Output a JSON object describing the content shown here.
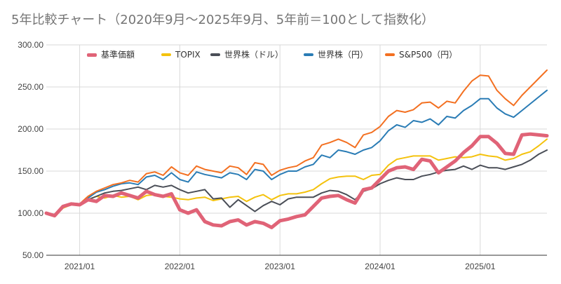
{
  "title": "5年比較チャート（2020年9月～2025年9月、5年前＝100として指数化）",
  "chart_data": {
    "type": "line",
    "title": "5年比較チャート（2020年9月～2025年9月、5年前＝100として指数化）",
    "xlabel": "",
    "ylabel": "",
    "ylim": [
      50,
      300
    ],
    "y_ticks": [
      "50.00",
      "100.00",
      "150.00",
      "200.00",
      "250.00",
      "300.00"
    ],
    "x_ticks": [
      "2021/01",
      "2022/01",
      "2023/01",
      "2024/01",
      "2025/01"
    ],
    "x": [
      "2020/09",
      "2020/10",
      "2020/11",
      "2020/12",
      "2021/01",
      "2021/02",
      "2021/03",
      "2021/04",
      "2021/05",
      "2021/06",
      "2021/07",
      "2021/08",
      "2021/09",
      "2021/10",
      "2021/11",
      "2021/12",
      "2022/01",
      "2022/02",
      "2022/03",
      "2022/04",
      "2022/05",
      "2022/06",
      "2022/07",
      "2022/08",
      "2022/09",
      "2022/10",
      "2022/11",
      "2022/12",
      "2023/01",
      "2023/02",
      "2023/03",
      "2023/04",
      "2023/05",
      "2023/06",
      "2023/07",
      "2023/08",
      "2023/09",
      "2023/10",
      "2023/11",
      "2023/12",
      "2024/01",
      "2024/02",
      "2024/03",
      "2024/04",
      "2024/05",
      "2024/06",
      "2024/07",
      "2024/08",
      "2024/09",
      "2024/10",
      "2024/11",
      "2024/12",
      "2025/01",
      "2025/02",
      "2025/03",
      "2025/04",
      "2025/05",
      "2025/06",
      "2025/07",
      "2025/08",
      "2025/09"
    ],
    "grid": true,
    "legend_position": "top",
    "series": [
      {
        "name": "基準価額",
        "color": "#e06377",
        "width": 5,
        "values": [
          100,
          97,
          108,
          111,
          110,
          116,
          114,
          121,
          120,
          124,
          121,
          118,
          126,
          122,
          120,
          123,
          104,
          100,
          104,
          90,
          86,
          85,
          90,
          92,
          86,
          90,
          88,
          83,
          91,
          93,
          96,
          98,
          108,
          118,
          120,
          121,
          116,
          112,
          128,
          130,
          140,
          150,
          154,
          155,
          152,
          164,
          162,
          148,
          155,
          162,
          172,
          180,
          191,
          191,
          183,
          171,
          170,
          193,
          194,
          193,
          192
        ]
      },
      {
        "name": "TOPIX",
        "color": "#f4c20d",
        "width": 2,
        "values": [
          100,
          96,
          106,
          110,
          111,
          116,
          120,
          118,
          121,
          119,
          120,
          116,
          121,
          122,
          120,
          119,
          117,
          116,
          118,
          119,
          115,
          117,
          119,
          120,
          114,
          119,
          122,
          116,
          121,
          123,
          123,
          125,
          128,
          135,
          141,
          143,
          144,
          144,
          140,
          145,
          146,
          157,
          164,
          166,
          168,
          168,
          168,
          163,
          165,
          167,
          166,
          167,
          170,
          168,
          167,
          163,
          165,
          170,
          173,
          180,
          188
        ]
      },
      {
        "name": "世界株（ドル）",
        "color": "#4a4e57",
        "width": 2,
        "values": [
          100,
          97,
          108,
          112,
          111,
          116,
          120,
          124,
          126,
          127,
          129,
          131,
          128,
          133,
          131,
          133,
          128,
          124,
          126,
          128,
          117,
          118,
          107,
          116,
          109,
          102,
          109,
          114,
          110,
          117,
          119,
          119,
          119,
          124,
          127,
          126,
          122,
          116,
          126,
          129,
          135,
          139,
          142,
          140,
          140,
          144,
          146,
          149,
          151,
          152,
          156,
          152,
          157,
          154,
          154,
          152,
          155,
          158,
          163,
          170,
          175
        ]
      },
      {
        "name": "世界株（円）",
        "color": "#2a7cb5",
        "width": 2,
        "values": [
          100,
          97,
          108,
          112,
          111,
          118,
          125,
          128,
          132,
          135,
          136,
          134,
          143,
          145,
          140,
          148,
          140,
          137,
          149,
          146,
          144,
          142,
          148,
          146,
          140,
          152,
          150,
          140,
          146,
          150,
          150,
          155,
          158,
          169,
          166,
          175,
          173,
          170,
          175,
          178,
          186,
          198,
          205,
          202,
          210,
          208,
          212,
          205,
          215,
          213,
          222,
          228,
          236,
          236,
          225,
          218,
          214,
          222,
          230,
          238,
          246
        ]
      },
      {
        "name": "S&P500（円）",
        "color": "#f37021",
        "width": 2,
        "values": [
          100,
          97,
          108,
          111,
          111,
          120,
          126,
          130,
          134,
          136,
          139,
          137,
          147,
          149,
          145,
          155,
          148,
          145,
          156,
          152,
          150,
          148,
          156,
          154,
          146,
          160,
          158,
          145,
          151,
          154,
          156,
          162,
          166,
          181,
          184,
          188,
          184,
          178,
          193,
          196,
          203,
          215,
          222,
          220,
          223,
          231,
          232,
          225,
          233,
          231,
          245,
          257,
          264,
          263,
          246,
          236,
          228,
          240,
          250,
          260,
          270
        ]
      }
    ]
  }
}
